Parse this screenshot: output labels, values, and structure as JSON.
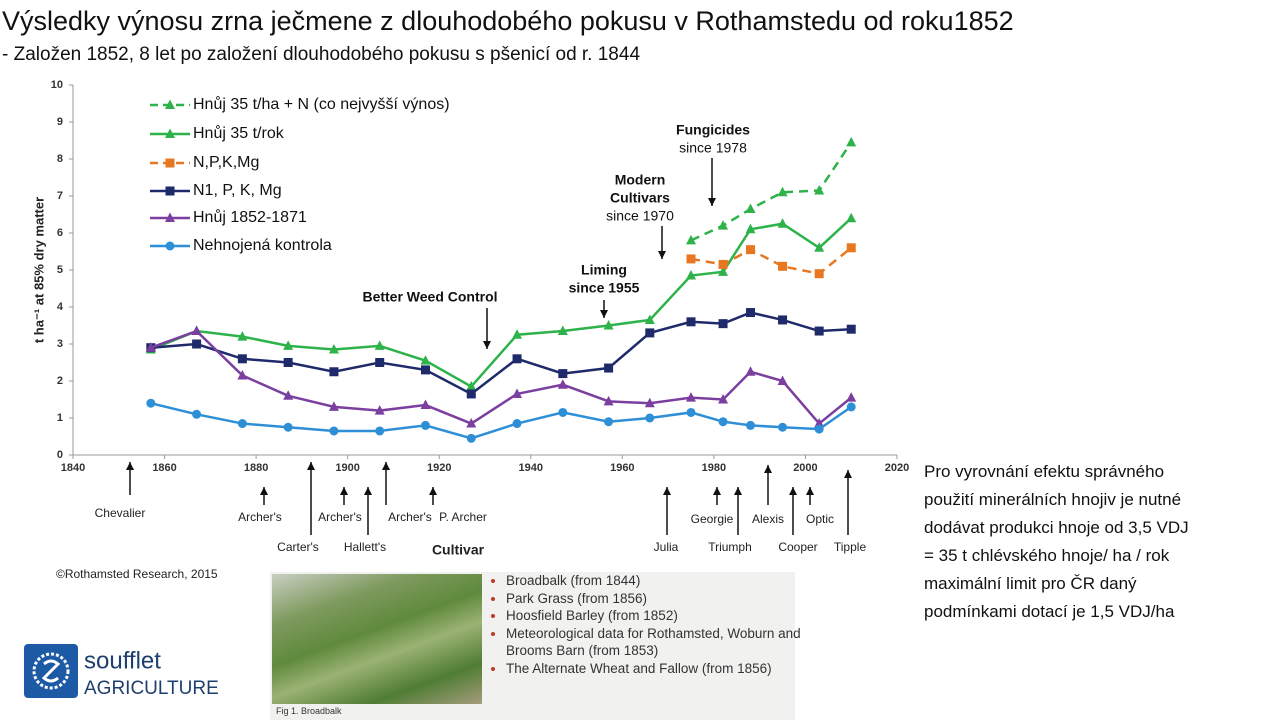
{
  "header": {
    "title": "Výsledky výnosu zrna ječmene z dlouhodobého pokusu v Rothamstedu od roku1852",
    "subtitle": "- Založen 1852, 8 let po založení dlouhodobého pokusu s pšenicí od r. 1844"
  },
  "chart_data": {
    "type": "line",
    "y_label": "t ha⁻¹ at 85% dry matter",
    "x_label": "Cultivar",
    "source": "©Rothamsted Research, 2015",
    "x": [
      1857,
      1867,
      1877,
      1887,
      1897,
      1907,
      1917,
      1927,
      1937,
      1947,
      1957,
      1966,
      1975,
      1982,
      1988,
      1995,
      2003,
      2010
    ],
    "xlim": [
      1840,
      2020
    ],
    "xticks": [
      1840,
      1860,
      1880,
      1900,
      1920,
      1940,
      1960,
      1980,
      2000,
      2020
    ],
    "ylim": [
      0,
      10
    ],
    "yticks": [
      0,
      1,
      2,
      3,
      4,
      5,
      6,
      7,
      8,
      9,
      10
    ],
    "series": [
      {
        "name": "Hnůj 35 t/ha + N (co nejvyšší výnos)",
        "color": "#2db34a",
        "dash": true,
        "marker": "triangle",
        "values": [
          null,
          null,
          null,
          null,
          null,
          null,
          null,
          null,
          null,
          null,
          null,
          null,
          5.8,
          6.2,
          6.65,
          7.1,
          7.15,
          8.45
        ]
      },
      {
        "name": "Hnůj 35 t/rok",
        "color": "#2db34a",
        "dash": false,
        "marker": "triangle",
        "values": [
          2.85,
          3.35,
          3.2,
          2.95,
          2.85,
          2.95,
          2.55,
          1.85,
          3.25,
          3.35,
          3.5,
          3.65,
          4.85,
          4.95,
          6.1,
          6.25,
          5.6,
          6.4
        ]
      },
      {
        "name": "N,P,K,Mg",
        "color": "#e87722",
        "dash": true,
        "marker": "square",
        "values": [
          null,
          null,
          null,
          null,
          null,
          null,
          null,
          null,
          null,
          null,
          null,
          null,
          5.3,
          5.15,
          5.55,
          5.1,
          4.9,
          5.6
        ]
      },
      {
        "name": "N1, P, K, Mg",
        "color": "#1f2a6b",
        "dash": false,
        "marker": "square",
        "values": [
          2.9,
          3.0,
          2.6,
          2.5,
          2.25,
          2.5,
          2.3,
          1.65,
          2.6,
          2.2,
          2.35,
          3.3,
          3.6,
          3.55,
          3.85,
          3.65,
          3.35,
          3.4
        ]
      },
      {
        "name": "Hnůj 1852-1871",
        "color": "#7b3fa0",
        "dash": false,
        "marker": "triangle",
        "values": [
          2.9,
          3.35,
          2.15,
          1.6,
          1.3,
          1.2,
          1.35,
          0.85,
          1.65,
          1.9,
          1.45,
          1.4,
          1.55,
          1.5,
          2.25,
          2.0,
          0.85,
          1.55
        ]
      },
      {
        "name": "Nehnojená kontrola",
        "color": "#2e8fd6",
        "dash": false,
        "marker": "circle",
        "values": [
          1.4,
          1.1,
          0.85,
          0.75,
          0.65,
          0.65,
          0.8,
          0.45,
          0.85,
          1.15,
          0.9,
          1.0,
          1.15,
          0.9,
          0.8,
          0.75,
          0.7,
          1.3
        ]
      }
    ],
    "annotations": [
      [
        "Better Weed Control"
      ],
      [
        "Liming",
        "since 1955"
      ],
      [
        "Modern",
        "Cultivars",
        "since 1970"
      ],
      [
        "Fungicides",
        "since 1978"
      ]
    ],
    "cultivars": [
      "Chevalier",
      "Archer's",
      "Carter's",
      "Archer's",
      "Hallett's",
      "Archer's",
      "P. Archer",
      "Julia",
      "Georgie",
      "Triumph",
      "Alexis",
      "Cooper",
      "Optic",
      "Tipple"
    ]
  },
  "note": [
    "Pro vyrovnání efektu správného",
    "použití minerálních hnojiv je nutné",
    "dodávat produkci hnoje od 3,5 VDJ",
    "= 35 t chlévského hnoje/ ha / rok",
    "maximální limit pro ČR daný",
    "podmínkami dotací je 1,5 VDJ/ha"
  ],
  "photo": {
    "items": [
      "Broadbalk (from 1844)",
      "Park Grass (from 1856)",
      "Hoosfield Barley (from 1852)",
      "Meteorological data for Rothamsted, Woburn and Brooms Barn (from 1853)",
      "The Alternate Wheat and Fallow (from 1856)"
    ],
    "caption": "Fig 1. Broadbalk"
  },
  "logo": {
    "line1": "soufflet",
    "line2": "AGRICULTURE"
  }
}
